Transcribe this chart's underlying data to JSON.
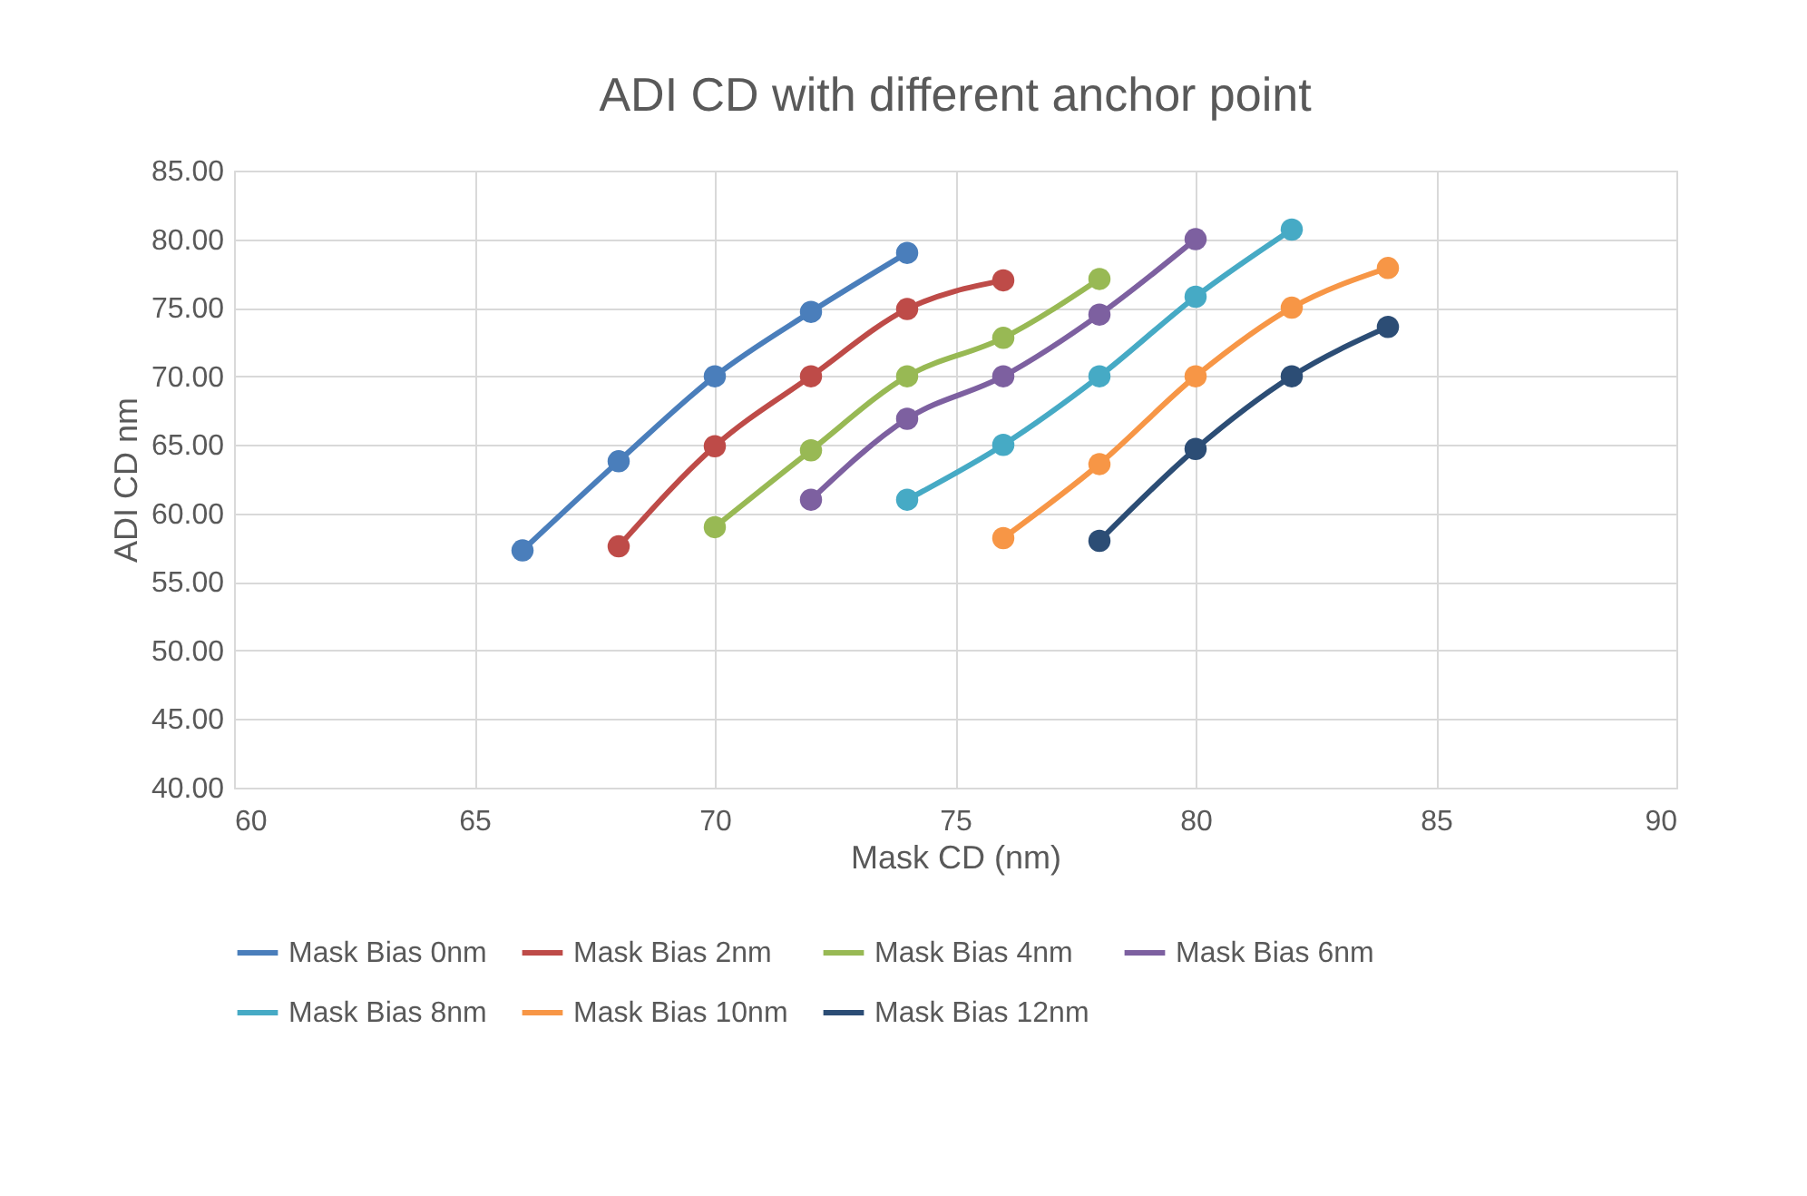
{
  "chart_data": {
    "type": "line",
    "title": "ADI CD with different anchor point",
    "xlabel": "Mask CD (nm)",
    "ylabel": "ADI CD nm",
    "xlim": [
      60,
      90
    ],
    "xticks": [
      60,
      65,
      70,
      75,
      80,
      85,
      90
    ],
    "ylim": [
      40,
      85
    ],
    "yticks": [
      {
        "value": 40,
        "label": "40.00"
      },
      {
        "value": 45,
        "label": "45.00"
      },
      {
        "value": 50,
        "label": "50.00"
      },
      {
        "value": 55,
        "label": "55.00"
      },
      {
        "value": 60,
        "label": "60.00"
      },
      {
        "value": 65,
        "label": "65.00"
      },
      {
        "value": 70,
        "label": "70.00"
      },
      {
        "value": 75,
        "label": "75.00"
      },
      {
        "value": 80,
        "label": "80.00"
      },
      {
        "value": 85,
        "label": "85.00"
      }
    ],
    "grid": true,
    "legend": "bottom",
    "marker": "circle",
    "line_style": "solid",
    "series": [
      {
        "name": "Mask Bias 0nm",
        "color": "#4a7ebb",
        "x": [
          66,
          68,
          70,
          72,
          74
        ],
        "values": [
          57.3,
          63.8,
          70.0,
          74.7,
          79.0
        ]
      },
      {
        "name": "Mask Bias 2nm",
        "color": "#be4b48",
        "x": [
          68,
          70,
          72,
          74,
          76
        ],
        "values": [
          57.6,
          64.9,
          70.0,
          74.9,
          77.0
        ]
      },
      {
        "name": "Mask Bias 4nm",
        "color": "#98b954",
        "x": [
          70,
          72,
          74,
          76,
          78
        ],
        "values": [
          59.0,
          64.6,
          70.0,
          72.8,
          77.1
        ]
      },
      {
        "name": "Mask Bias 6nm",
        "color": "#7d60a0",
        "x": [
          72,
          74,
          76,
          78,
          80
        ],
        "values": [
          61.0,
          66.9,
          70.0,
          74.5,
          80.0
        ]
      },
      {
        "name": "Mask Bias 8nm",
        "color": "#46aac5",
        "x": [
          74,
          76,
          78,
          80,
          82
        ],
        "values": [
          61.0,
          65.0,
          70.0,
          75.8,
          80.7
        ]
      },
      {
        "name": "Mask Bias 10nm",
        "color": "#f79646",
        "x": [
          76,
          78,
          80,
          82,
          84
        ],
        "values": [
          58.2,
          63.6,
          70.0,
          75.0,
          77.9
        ]
      },
      {
        "name": "Mask Bias 12nm",
        "color": "#2c4d75",
        "x": [
          78,
          80,
          82,
          84
        ],
        "values": [
          58.0,
          64.7,
          70.0,
          73.6
        ]
      }
    ]
  }
}
